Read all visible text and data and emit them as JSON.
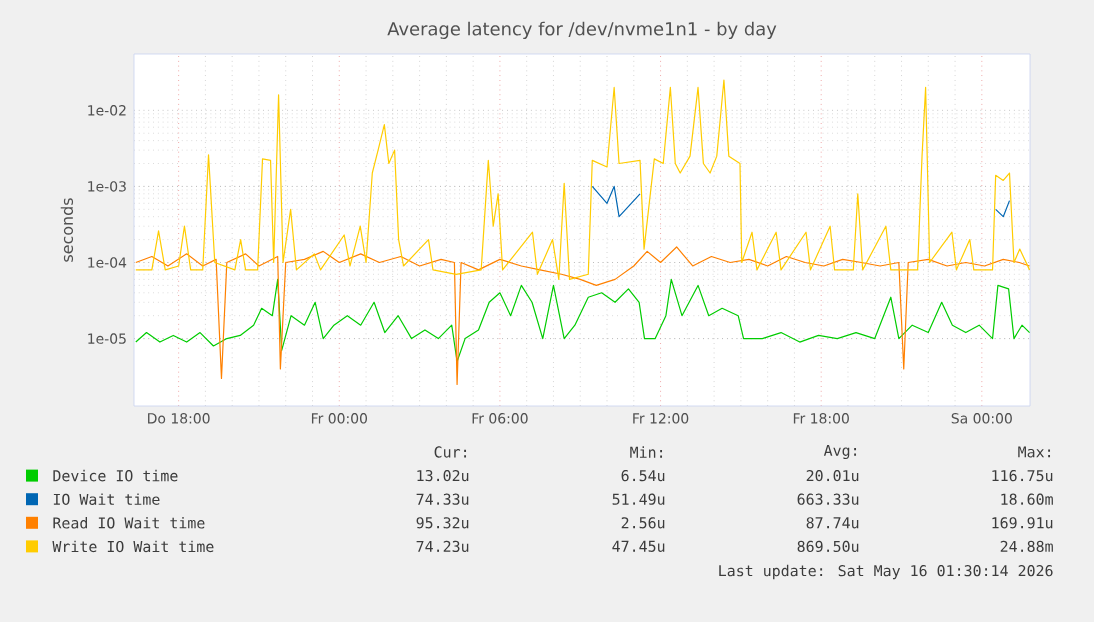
{
  "chart_data": {
    "type": "line",
    "title": "Average latency for /dev/nvme1n1 - by day",
    "ylabel": "seconds",
    "log": true,
    "grid": true,
    "legend": "bottom",
    "xlim": [
      "2026-05-14T16:20",
      "2026-05-16T01:48"
    ],
    "ylim": [
      1.3e-06,
      0.055
    ],
    "xticks": [
      {
        "value": "2026-05-14T18:00",
        "label": "Do 18:00"
      },
      {
        "value": "2026-05-15T00:00",
        "label": "Fr 00:00"
      },
      {
        "value": "2026-05-15T06:00",
        "label": "Fr 06:00"
      },
      {
        "value": "2026-05-15T12:00",
        "label": "Fr 12:00"
      },
      {
        "value": "2026-05-15T18:00",
        "label": "Fr 18:00"
      },
      {
        "value": "2026-05-16T00:00",
        "label": "Sa 00:00"
      }
    ],
    "yticks": [
      {
        "value": 1e-05,
        "label": "1e-05"
      },
      {
        "value": 0.0001,
        "label": "1e-04"
      },
      {
        "value": 0.001,
        "label": "1e-03"
      },
      {
        "value": 0.01,
        "label": "1e-02"
      }
    ],
    "series": [
      {
        "name": "Device IO time",
        "color": "#00cc00",
        "x": [
          "2026-05-14T16:24",
          "2026-05-14T16:48",
          "2026-05-14T17:18",
          "2026-05-14T17:48",
          "2026-05-14T18:18",
          "2026-05-14T18:48",
          "2026-05-14T19:18",
          "2026-05-14T19:48",
          "2026-05-14T20:18",
          "2026-05-14T20:48",
          "2026-05-14T21:06",
          "2026-05-14T21:30",
          "2026-05-14T21:42",
          "2026-05-14T21:51",
          "2026-05-14T22:12",
          "2026-05-14T22:42",
          "2026-05-14T23:06",
          "2026-05-14T23:24",
          "2026-05-14T23:48",
          "2026-05-15T00:18",
          "2026-05-15T00:48",
          "2026-05-15T01:18",
          "2026-05-15T01:42",
          "2026-05-15T02:12",
          "2026-05-15T02:42",
          "2026-05-15T03:12",
          "2026-05-15T03:42",
          "2026-05-15T04:12",
          "2026-05-15T04:24",
          "2026-05-15T04:42",
          "2026-05-15T05:12",
          "2026-05-15T05:36",
          "2026-05-15T06:00",
          "2026-05-15T06:24",
          "2026-05-15T06:48",
          "2026-05-15T07:12",
          "2026-05-15T07:36",
          "2026-05-15T08:00",
          "2026-05-15T08:24",
          "2026-05-15T08:48",
          "2026-05-15T09:18",
          "2026-05-15T09:48",
          "2026-05-15T10:18",
          "2026-05-15T10:48",
          "2026-05-15T11:12",
          "2026-05-15T11:24",
          "2026-05-15T11:48",
          "2026-05-15T12:12",
          "2026-05-15T12:24",
          "2026-05-15T12:48",
          "2026-05-15T13:24",
          "2026-05-15T13:48",
          "2026-05-15T14:18",
          "2026-05-15T14:54",
          "2026-05-15T15:06",
          "2026-05-15T15:48",
          "2026-05-15T16:30",
          "2026-05-15T17:12",
          "2026-05-15T17:54",
          "2026-05-15T18:36",
          "2026-05-15T19:18",
          "2026-05-15T20:00",
          "2026-05-15T20:36",
          "2026-05-15T20:54",
          "2026-05-15T21:24",
          "2026-05-15T22:00",
          "2026-05-15T22:30",
          "2026-05-15T22:54",
          "2026-05-15T23:24",
          "2026-05-15T23:54",
          "2026-05-16T00:24",
          "2026-05-16T00:36",
          "2026-05-16T01:00",
          "2026-05-16T01:12",
          "2026-05-16T01:30",
          "2026-05-16T01:47"
        ],
        "values": [
          9e-06,
          1.2e-05,
          9e-06,
          1.1e-05,
          9e-06,
          1.2e-05,
          8e-06,
          1e-05,
          1.1e-05,
          1.5e-05,
          2.5e-05,
          2e-05,
          6e-05,
          7e-06,
          2e-05,
          1.5e-05,
          3e-05,
          1e-05,
          1.5e-05,
          2e-05,
          1.5e-05,
          3e-05,
          1.2e-05,
          2e-05,
          1e-05,
          1.3e-05,
          1e-05,
          1.5e-05,
          5e-06,
          1e-05,
          1.3e-05,
          3e-05,
          4e-05,
          2e-05,
          5e-05,
          3e-05,
          1e-05,
          5e-05,
          1e-05,
          1.5e-05,
          3.5e-05,
          4e-05,
          3e-05,
          4.5e-05,
          3e-05,
          1e-05,
          1e-05,
          2e-05,
          6e-05,
          2e-05,
          5e-05,
          2e-05,
          2.5e-05,
          2e-05,
          1e-05,
          1e-05,
          1.2e-05,
          9e-06,
          1.1e-05,
          1e-05,
          1.2e-05,
          1e-05,
          3.5e-05,
          1e-05,
          1.5e-05,
          1.2e-05,
          3e-05,
          1.5e-05,
          1.2e-05,
          1.5e-05,
          1e-05,
          5e-05,
          4.5e-05,
          1e-05,
          1.5e-05,
          1.2e-05
        ]
      },
      {
        "name": "IO Wait time",
        "color": "#0066b3",
        "x": [
          "2026-05-15T09:27",
          "2026-05-15T10:00",
          "2026-05-15T10:16",
          "2026-05-15T10:27",
          "2026-05-15T11:14",
          null,
          "2026-05-16T00:31",
          "2026-05-16T00:48",
          "2026-05-16T01:02"
        ],
        "values": [
          0.001,
          0.0006,
          0.001,
          0.0004,
          0.0008,
          null,
          0.0005,
          0.0004,
          0.00065
        ]
      },
      {
        "name": "Read IO Wait time",
        "color": "#ff8000",
        "x": [
          "2026-05-14T16:24",
          "2026-05-14T17:00",
          "2026-05-14T17:36",
          "2026-05-14T18:18",
          "2026-05-14T18:54",
          "2026-05-14T19:24",
          "2026-05-14T19:36",
          "2026-05-14T19:48",
          "2026-05-14T20:30",
          "2026-05-14T21:00",
          "2026-05-14T21:42",
          "2026-05-14T21:48",
          "2026-05-14T22:00",
          "2026-05-14T22:42",
          "2026-05-14T23:24",
          "2026-05-15T00:00",
          "2026-05-15T00:48",
          "2026-05-15T01:30",
          "2026-05-15T02:18",
          "2026-05-15T03:00",
          "2026-05-15T03:48",
          "2026-05-15T04:18",
          "2026-05-15T04:24",
          "2026-05-15T04:33",
          "2026-05-15T05:12",
          "2026-05-15T06:00",
          "2026-05-15T06:48",
          "2026-05-15T07:30",
          "2026-05-15T08:18",
          "2026-05-15T09:00",
          "2026-05-15T09:36",
          "2026-05-15T10:18",
          "2026-05-15T11:00",
          "2026-05-15T11:30",
          "2026-05-15T12:00",
          "2026-05-15T12:36",
          "2026-05-15T13:12",
          "2026-05-15T13:54",
          "2026-05-15T14:36",
          "2026-05-15T15:18",
          "2026-05-15T16:00",
          "2026-05-15T16:42",
          "2026-05-15T17:24",
          "2026-05-15T18:06",
          "2026-05-15T18:48",
          "2026-05-15T19:30",
          "2026-05-15T20:12",
          "2026-05-15T20:54",
          "2026-05-15T21:05",
          "2026-05-15T21:15",
          "2026-05-15T22:00",
          "2026-05-15T22:42",
          "2026-05-15T23:24",
          "2026-05-16T00:06",
          "2026-05-16T00:48",
          "2026-05-16T01:24",
          "2026-05-16T01:47"
        ],
        "values": [
          0.0001,
          0.00012,
          9e-05,
          0.00013,
          9e-05,
          0.00011,
          3e-06,
          0.0001,
          0.00013,
          9e-05,
          0.00012,
          4e-06,
          0.0001,
          0.00011,
          0.00014,
          0.0001,
          0.00013,
          0.0001,
          0.00012,
          9e-05,
          0.00011,
          0.0001,
          2.5e-06,
          0.0001,
          8e-05,
          0.00011,
          9e-05,
          8e-05,
          7e-05,
          6e-05,
          5e-05,
          6e-05,
          9e-05,
          0.00014,
          0.0001,
          0.00016,
          9e-05,
          0.00012,
          0.0001,
          0.00011,
          9e-05,
          0.00012,
          0.0001,
          9e-05,
          0.00011,
          0.0001,
          9e-05,
          0.0001,
          4e-06,
          0.0001,
          0.00011,
          9e-05,
          0.0001,
          9e-05,
          0.00011,
          0.0001,
          9e-05
        ]
      },
      {
        "name": "Write IO Wait time",
        "color": "#ffcc00",
        "x": [
          "2026-05-14T16:24",
          "2026-05-14T17:00",
          "2026-05-14T17:15",
          "2026-05-14T17:30",
          "2026-05-14T18:00",
          "2026-05-14T18:13",
          "2026-05-14T18:27",
          "2026-05-14T18:54",
          "2026-05-14T19:07",
          "2026-05-14T19:21",
          "2026-05-14T20:06",
          "2026-05-14T20:19",
          "2026-05-14T20:30",
          "2026-05-14T20:57",
          "2026-05-14T21:08",
          "2026-05-14T21:26",
          "2026-05-14T21:33",
          "2026-05-14T21:44",
          "2026-05-14T21:54",
          "2026-05-14T22:11",
          "2026-05-14T22:24",
          "2026-05-14T23:04",
          "2026-05-14T23:18",
          "2026-05-15T00:11",
          "2026-05-15T00:24",
          "2026-05-15T00:47",
          "2026-05-15T01:00",
          "2026-05-15T01:14",
          "2026-05-15T01:27",
          "2026-05-15T01:41",
          "2026-05-15T01:51",
          "2026-05-15T02:04",
          "2026-05-15T02:13",
          "2026-05-15T02:24",
          "2026-05-15T03:20",
          "2026-05-15T03:30",
          "2026-05-15T04:22",
          "2026-05-15T05:18",
          "2026-05-15T05:34",
          "2026-05-15T05:45",
          "2026-05-15T05:56",
          "2026-05-15T06:06",
          "2026-05-15T07:13",
          "2026-05-15T07:24",
          "2026-05-15T07:58",
          "2026-05-15T08:12",
          "2026-05-15T08:24",
          "2026-05-15T08:36",
          "2026-05-15T09:18",
          "2026-05-15T09:27",
          "2026-05-15T10:00",
          "2026-05-15T10:16",
          "2026-05-15T10:27",
          "2026-05-15T11:14",
          "2026-05-15T11:23",
          "2026-05-15T11:46",
          "2026-05-15T12:06",
          "2026-05-15T12:22",
          "2026-05-15T12:33",
          "2026-05-15T12:44",
          "2026-05-15T13:06",
          "2026-05-15T13:24",
          "2026-05-15T13:36",
          "2026-05-15T13:51",
          "2026-05-15T14:06",
          "2026-05-15T14:22",
          "2026-05-15T14:33",
          "2026-05-15T14:58",
          "2026-05-15T15:02",
          "2026-05-15T15:25",
          "2026-05-15T15:36",
          "2026-05-15T16:19",
          "2026-05-15T16:30",
          "2026-05-15T17:26",
          "2026-05-15T17:36",
          "2026-05-15T18:20",
          "2026-05-15T18:30",
          "2026-05-15T19:12",
          "2026-05-15T19:22",
          "2026-05-15T19:33",
          "2026-05-15T20:25",
          "2026-05-15T20:36",
          "2026-05-15T21:36",
          "2026-05-15T21:46",
          "2026-05-15T21:54",
          "2026-05-15T22:03",
          "2026-05-15T22:53",
          "2026-05-15T23:03",
          "2026-05-15T23:33",
          "2026-05-15T23:42",
          "2026-05-16T00:24",
          "2026-05-16T00:31",
          "2026-05-16T00:48",
          "2026-05-16T01:02",
          "2026-05-16T01:12",
          "2026-05-16T01:25",
          "2026-05-16T01:47"
        ],
        "values": [
          8e-05,
          8e-05,
          0.00026,
          8e-05,
          9e-05,
          0.0003,
          8e-05,
          8e-05,
          0.0026,
          0.0001,
          8e-05,
          0.0002,
          8e-05,
          8e-05,
          0.0023,
          0.0022,
          0.0001,
          0.016,
          0.0001,
          0.0005,
          8e-05,
          0.00013,
          8e-05,
          0.00023,
          9e-05,
          0.0003,
          0.0001,
          0.0015,
          0.003,
          0.0065,
          0.002,
          0.003,
          0.0002,
          9e-05,
          0.0002,
          8e-05,
          7e-05,
          8e-05,
          0.0022,
          0.0003,
          0.0008,
          8e-05,
          0.00025,
          7e-05,
          0.0002,
          6e-05,
          0.0011,
          6e-05,
          7e-05,
          0.0022,
          0.0018,
          0.02,
          0.002,
          0.0022,
          0.00015,
          0.0023,
          0.002,
          0.02,
          0.002,
          0.0015,
          0.0025,
          0.02,
          0.002,
          0.0015,
          0.0025,
          0.025,
          0.0025,
          0.002,
          0.0001,
          0.00025,
          8e-05,
          0.00025,
          8e-05,
          0.00025,
          8e-05,
          0.0003,
          8e-05,
          8e-05,
          0.0008,
          8e-05,
          0.0003,
          8e-05,
          8e-05,
          0.0025,
          0.02,
          0.0001,
          0.00025,
          8e-05,
          0.0002,
          8e-05,
          8e-05,
          0.0014,
          0.0012,
          0.0015,
          0.0001,
          0.00015,
          8e-05
        ]
      }
    ],
    "annotations": [
      "Cur:",
      "Min:",
      "Avg:",
      "Max:",
      "13.02u",
      "6.54u",
      "20.01u",
      "116.75u",
      "74.33u",
      "51.49u",
      "663.33u",
      "18.60m",
      "95.32u",
      "2.56u",
      "87.74u",
      "169.91u",
      "74.23u",
      "47.45u",
      "869.50u",
      "24.88m",
      "Last update: Sat May 16 01:30:14 2026"
    ]
  }
}
